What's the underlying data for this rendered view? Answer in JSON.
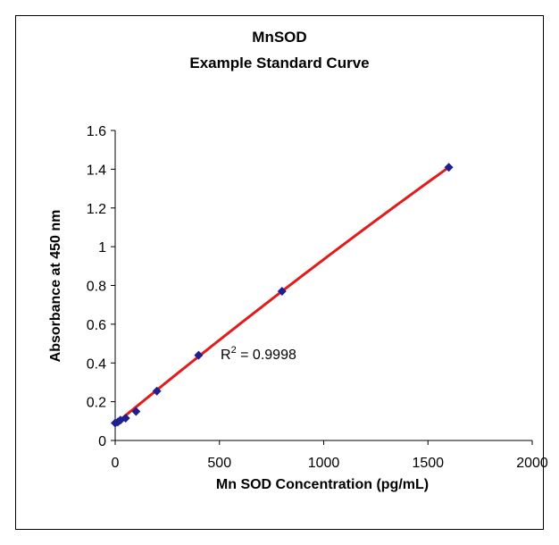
{
  "chart_data": {
    "type": "scatter",
    "title": "MnSOD",
    "subtitle": "Example Standard Curve",
    "xlabel": "Mn SOD Concentration (pg/mL)",
    "ylabel": "Absorbance at 450 nm",
    "xlim": [
      0,
      2000
    ],
    "ylim": [
      0,
      1.6
    ],
    "xticks": [
      0,
      500,
      1000,
      1500,
      2000
    ],
    "yticks": [
      0,
      0.2,
      0.4,
      0.6,
      0.8,
      1,
      1.2,
      1.4,
      1.6
    ],
    "ytick_labels": [
      "0",
      "0.2",
      "0.4",
      "0.6",
      "0.8",
      "1",
      "1.2",
      "1.4",
      "1.6"
    ],
    "grid": false,
    "series": [
      {
        "x": [
          0,
          12.5,
          25,
          50,
          100,
          200,
          400,
          800,
          1600
        ],
        "y": [
          0.09,
          0.095,
          0.105,
          0.115,
          0.15,
          0.255,
          0.44,
          0.77,
          1.41
        ],
        "marker": "diamond",
        "color": "#1f1f8f"
      }
    ],
    "trendline": {
      "type": "polynomial",
      "x_range": [
        0,
        1600
      ],
      "y_range": [
        0.085,
        1.41
      ],
      "color": "#e21b1b",
      "annotation": {
        "r2_prefix": "R",
        "r2_sup": "2",
        "r2_value": " = 0.9998"
      }
    }
  }
}
